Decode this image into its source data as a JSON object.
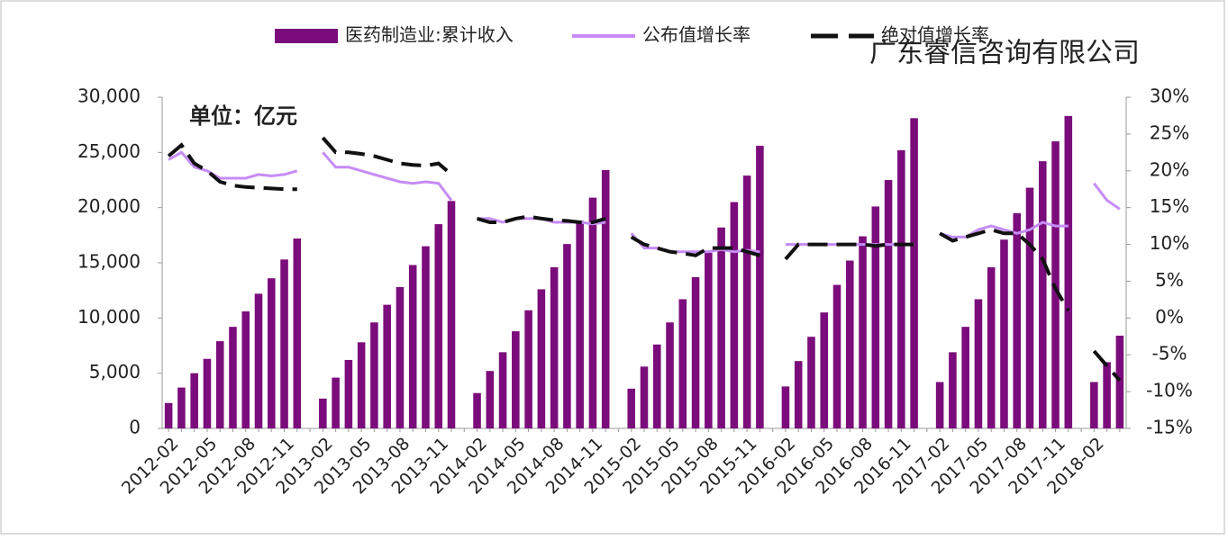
{
  "chart_data": {
    "type": "bar_line",
    "annotation": "单位：亿元",
    "watermark": "广东睿信咨询有限公司",
    "categories": [
      "2012-02",
      null,
      null,
      "2012-05",
      null,
      null,
      "2012-08",
      null,
      null,
      "2012-11",
      null,
      null,
      "2013-02",
      null,
      null,
      "2013-05",
      null,
      null,
      "2013-08",
      null,
      null,
      "2013-11",
      null,
      null,
      "2014-02",
      null,
      null,
      "2014-05",
      null,
      null,
      "2014-08",
      null,
      null,
      "2014-11",
      null,
      null,
      "2015-02",
      null,
      null,
      "2015-05",
      null,
      null,
      "2015-08",
      null,
      null,
      "2015-11",
      null,
      null,
      "2016-02",
      null,
      null,
      "2016-05",
      null,
      null,
      "2016-08",
      null,
      null,
      "2016-11",
      null,
      null,
      "2017-02",
      null,
      null,
      "2017-05",
      null,
      null,
      "2017-08",
      null,
      null,
      "2017-11",
      null,
      null,
      "2018-02",
      null,
      null
    ],
    "series": [
      {
        "name": "医药制造业:累计收入",
        "type": "bar",
        "color": "#7b0c7b",
        "values": [
          2300,
          3700,
          5000,
          6300,
          7900,
          9200,
          10600,
          12200,
          13600,
          15300,
          17200,
          null,
          2700,
          4600,
          6200,
          7800,
          9600,
          11200,
          12800,
          14800,
          16500,
          18500,
          20600,
          null,
          3200,
          5200,
          6900,
          8800,
          10700,
          12600,
          14600,
          16700,
          18800,
          20900,
          23400,
          null,
          3600,
          5600,
          7600,
          9600,
          11700,
          13700,
          15900,
          18200,
          20500,
          22900,
          25600,
          null,
          3800,
          6100,
          8300,
          10500,
          13000,
          15200,
          17400,
          20100,
          22500,
          25200,
          28100,
          null,
          4200,
          6900,
          9200,
          11700,
          14600,
          17100,
          19500,
          21800,
          24200,
          26000,
          28300,
          null,
          4200,
          6000,
          8400
        ]
      },
      {
        "name": "公布值增长率",
        "type": "line",
        "axis": "y2",
        "color": "#c58cf5",
        "dash": false,
        "values": [
          21.5,
          22.5,
          20.5,
          20,
          19,
          19,
          19,
          19.5,
          19.3,
          19.5,
          20,
          null,
          22.5,
          20.5,
          20.5,
          20,
          19.5,
          19,
          18.5,
          18.3,
          18.5,
          18.3,
          16,
          null,
          13.5,
          13.5,
          13,
          13.5,
          13.5,
          13.5,
          13,
          13,
          13,
          12.8,
          13,
          null,
          11.5,
          9.5,
          9.5,
          9,
          9,
          9,
          9,
          9.3,
          9,
          9.2,
          9,
          null,
          10,
          10,
          10,
          10,
          10,
          10,
          10,
          10,
          10,
          10,
          10,
          null,
          11.5,
          11,
          11,
          12,
          12.5,
          12,
          11.5,
          12,
          13,
          12.5,
          12.5,
          null,
          18.3,
          16,
          14.8
        ]
      },
      {
        "name": "绝对值增长率",
        "type": "line",
        "axis": "y2",
        "color": "#111111",
        "dash": true,
        "values": [
          22,
          23.5,
          21,
          20,
          18.5,
          18,
          17.8,
          17.7,
          17.6,
          17.5,
          17.5,
          null,
          24.5,
          22.5,
          22.5,
          22.3,
          22,
          21.5,
          21,
          20.8,
          20.7,
          21,
          19.5,
          null,
          13.5,
          13,
          13,
          13.5,
          13.8,
          13.5,
          13.3,
          13.2,
          13,
          13,
          13.5,
          null,
          11,
          10,
          9.5,
          9,
          8.8,
          8.5,
          9.5,
          9.5,
          9.5,
          9,
          8.5,
          null,
          8,
          10,
          10,
          10,
          10,
          10,
          10,
          9.8,
          10,
          10,
          10,
          null,
          11.5,
          10.5,
          11,
          11.5,
          12,
          11.5,
          11.5,
          10,
          8,
          4,
          1,
          null,
          -4.5,
          -6.5,
          -8.5
        ]
      }
    ],
    "ylim": [
      0,
      30000
    ],
    "yticks": [
      0,
      {
        "value": 5000,
        "label": "5,000"
      },
      {
        "value": 10000,
        "label": "10,000"
      },
      {
        "value": 15000,
        "label": "15,000"
      },
      {
        "value": 20000,
        "label": "20,000"
      },
      {
        "value": 25000,
        "label": "25,000"
      },
      {
        "value": 30000,
        "label": "30,000"
      }
    ],
    "y2lim": [
      -15,
      30
    ],
    "y2ticks": [
      {
        "value": -15,
        "label": "-15%"
      },
      {
        "value": -10,
        "label": "-10%"
      },
      {
        "value": -5,
        "label": "-5%"
      },
      {
        "value": 0,
        "label": "0%"
      },
      {
        "value": 5,
        "label": "5%"
      },
      {
        "value": 10,
        "label": "10%"
      },
      {
        "value": 15,
        "label": "15%"
      },
      {
        "value": 20,
        "label": "20%"
      },
      {
        "value": 25,
        "label": "25%"
      },
      {
        "value": 30,
        "label": "30%"
      }
    ],
    "grid": false,
    "legend": "top"
  }
}
